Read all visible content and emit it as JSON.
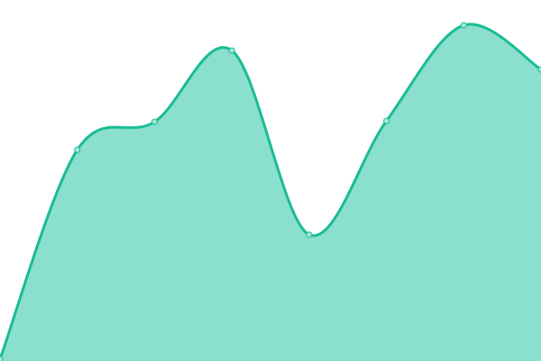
{
  "chart_data": {
    "type": "area",
    "title": "",
    "xlabel": "",
    "ylabel": "",
    "x": [
      0,
      1,
      2,
      3,
      4,
      5,
      6,
      7
    ],
    "values": [
      2,
      234,
      265,
      344,
      140,
      266,
      372,
      323
    ],
    "ylim": [
      0,
      400
    ],
    "grid": false,
    "smooth": true,
    "colors": {
      "line": "#1abc94",
      "fill": "#8adfcf",
      "marker_fill": "#a6eadb"
    }
  }
}
